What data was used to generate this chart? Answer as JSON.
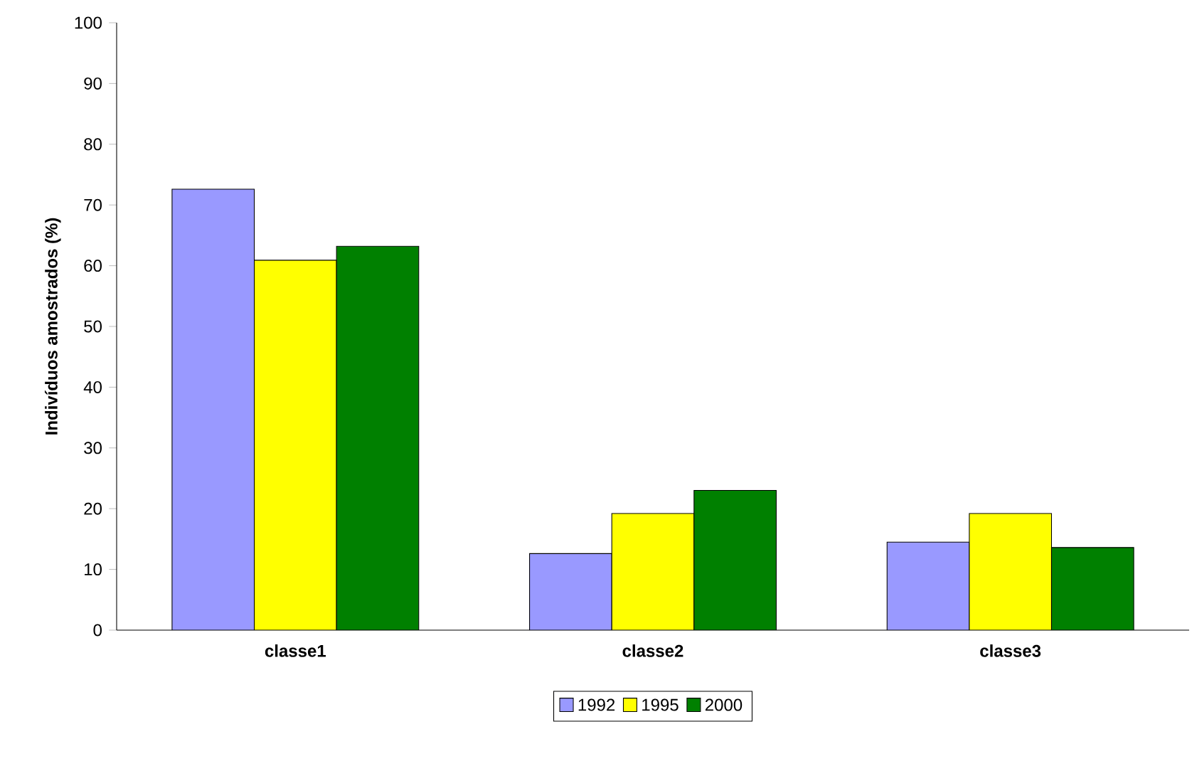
{
  "chart_data": {
    "type": "bar",
    "ylabel": "Indivíduos amostrados (%)",
    "categories": [
      "classe1",
      "classe2",
      "classe3"
    ],
    "series": [
      {
        "name": "1992",
        "color": "#9999ff",
        "values": [
          72.6,
          12.6,
          14.5
        ]
      },
      {
        "name": "1995",
        "color": "#ffff00",
        "values": [
          60.9,
          19.2,
          19.2
        ]
      },
      {
        "name": "2000",
        "color": "#008000",
        "values": [
          63.2,
          23.0,
          13.6
        ]
      }
    ],
    "ylim": [
      0,
      100
    ],
    "yticks": [
      0,
      10,
      20,
      30,
      40,
      50,
      60,
      70,
      80,
      90,
      100
    ],
    "legend": "bottom"
  }
}
